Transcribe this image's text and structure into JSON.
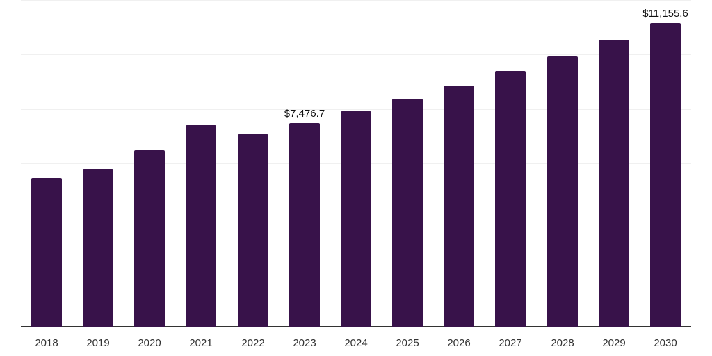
{
  "chart_data": {
    "type": "bar",
    "title": "",
    "xlabel": "",
    "ylabel": "",
    "categories": [
      "2018",
      "2019",
      "2020",
      "2021",
      "2022",
      "2023",
      "2024",
      "2025",
      "2026",
      "2027",
      "2028",
      "2029",
      "2030"
    ],
    "values": [
      5476,
      5783,
      6474,
      7395,
      7063,
      7476.7,
      7907,
      8368,
      8854,
      9391,
      9929,
      10543,
      11155.6
    ],
    "data_labels": [
      {
        "category": "2023",
        "text": "$7,476.7"
      },
      {
        "category": "2030",
        "text": "$11,155.6"
      }
    ],
    "ylim": [
      0,
      12000
    ],
    "yticks": [
      0,
      2000,
      4000,
      6000,
      8000,
      10000,
      12000
    ],
    "grid": true,
    "legend": null,
    "bar_color": "#38124a"
  }
}
